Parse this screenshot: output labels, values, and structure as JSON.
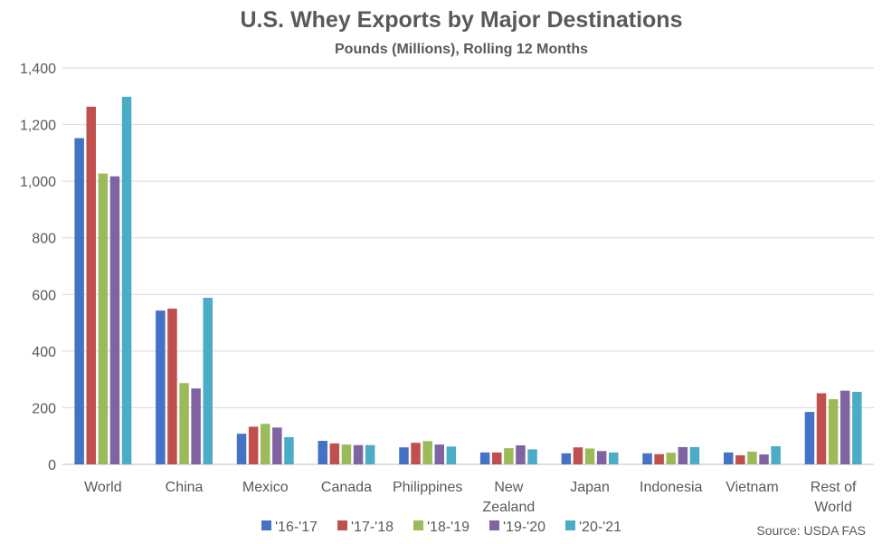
{
  "chart_data": {
    "type": "bar",
    "title": "U.S. Whey Exports by Major Destinations",
    "subtitle": "Pounds (Millions), Rolling 12 Months",
    "categories": [
      [
        "World"
      ],
      [
        "China"
      ],
      [
        "Mexico"
      ],
      [
        "Canada"
      ],
      [
        "Philippines"
      ],
      [
        "New",
        "Zealand"
      ],
      [
        "Japan"
      ],
      [
        "Indonesia"
      ],
      [
        "Vietnam"
      ],
      [
        "Rest of",
        "World"
      ]
    ],
    "series": [
      {
        "name": "'16-'17",
        "color": "#4472C4",
        "values": [
          1152,
          543,
          108,
          83,
          60,
          42,
          39,
          39,
          42,
          185
        ]
      },
      {
        "name": "'17-'18",
        "color": "#C0504D",
        "values": [
          1263,
          550,
          133,
          74,
          76,
          42,
          60,
          36,
          32,
          251
        ]
      },
      {
        "name": "'18-'19",
        "color": "#9BBB59",
        "values": [
          1027,
          287,
          143,
          70,
          82,
          57,
          56,
          41,
          45,
          230
        ]
      },
      {
        "name": "'19-'20",
        "color": "#8064A2",
        "values": [
          1017,
          268,
          130,
          68,
          70,
          67,
          47,
          61,
          35,
          260
        ]
      },
      {
        "name": "'20-'21",
        "color": "#4BACC6",
        "values": [
          1298,
          588,
          96,
          68,
          63,
          53,
          42,
          61,
          64,
          256
        ]
      }
    ],
    "yticks": [
      "0",
      "200",
      "400",
      "600",
      "800",
      "1,000",
      "1,200",
      "1,400"
    ],
    "ylim": [
      0,
      1400
    ],
    "grid": true,
    "legend_position": "bottom",
    "source": "Source: USDA FAS"
  }
}
